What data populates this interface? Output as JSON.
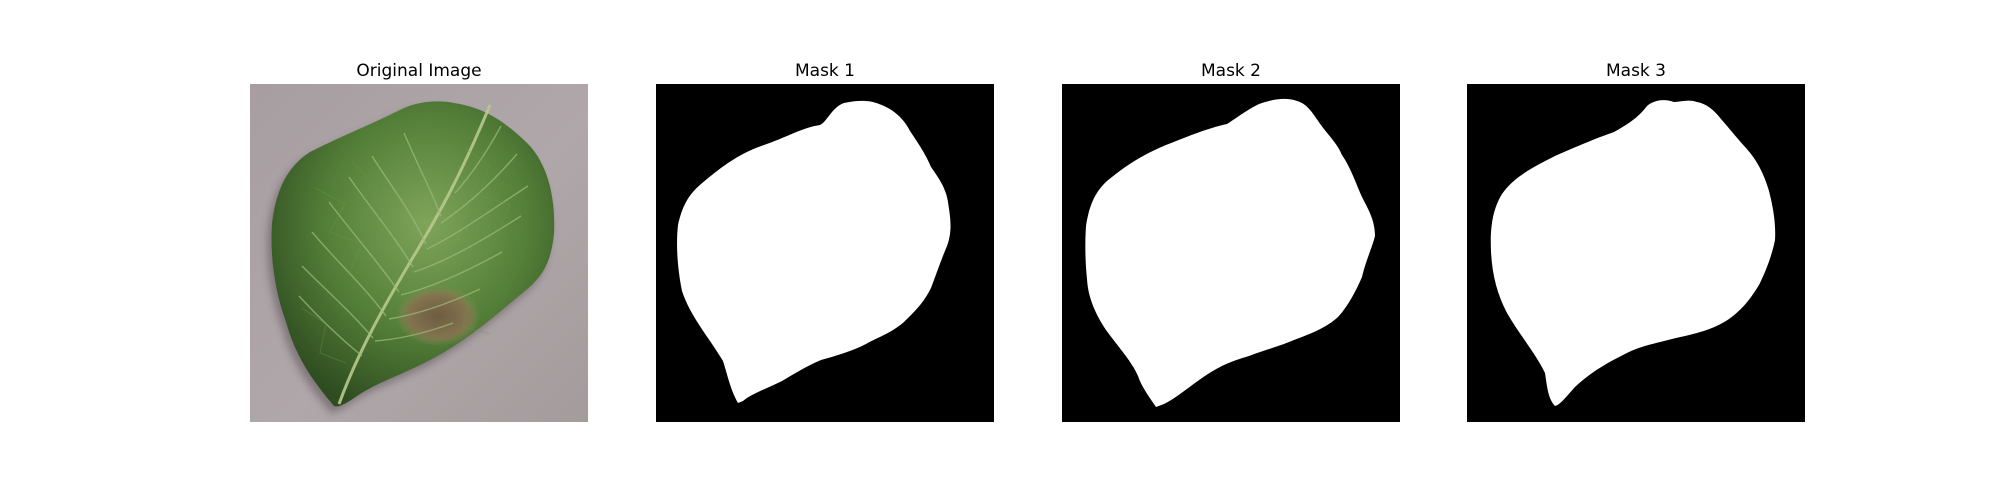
{
  "panels": [
    {
      "title": "Original Image",
      "kind": "photo",
      "subject": "leaf-photo"
    },
    {
      "title": "Mask 1",
      "kind": "mask",
      "subject": "leaf-mask"
    },
    {
      "title": "Mask 2",
      "kind": "mask",
      "subject": "leaf-mask"
    },
    {
      "title": "Mask 3",
      "kind": "mask",
      "subject": "leaf-mask"
    }
  ],
  "colors": {
    "background": "#ffffff",
    "mask_background": "#000000",
    "mask_foreground": "#ffffff",
    "photo_surface": "#a99fa2",
    "leaf_green": "#4f7a35",
    "leaf_dark": "#2f4d21",
    "lesion_brown": "#7b6447"
  }
}
